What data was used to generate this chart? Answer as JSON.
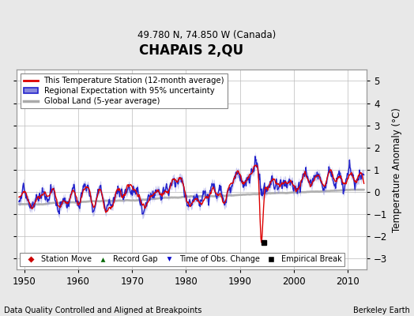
{
  "title": "CHAPAIS 2,QU",
  "subtitle": "49.780 N, 74.850 W (Canada)",
  "footer_left": "Data Quality Controlled and Aligned at Breakpoints",
  "footer_right": "Berkeley Earth",
  "xlim": [
    1948.5,
    2013.5
  ],
  "ylim": [
    -3.5,
    5.5
  ],
  "yticks": [
    -3,
    -2,
    -1,
    0,
    1,
    2,
    3,
    4,
    5
  ],
  "xticks": [
    1950,
    1960,
    1970,
    1980,
    1990,
    2000,
    2010
  ],
  "ylabel": "Temperature Anomaly (°C)",
  "bg_color": "#e8e8e8",
  "plot_bg_color": "#ffffff",
  "grid_color": "#bbbbbb",
  "station_color": "#dd0000",
  "regional_color": "#2222cc",
  "regional_fill_color": "#8888dd",
  "global_color": "#aaaaaa",
  "empirical_break_year": 1994.5,
  "empirical_break_value": -2.3,
  "seed": 12345
}
